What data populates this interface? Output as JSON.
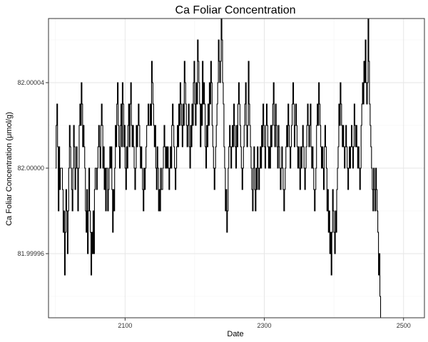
{
  "chart_data": {
    "type": "line",
    "title": "Ca Foliar Concentration",
    "xlabel": "Date",
    "ylabel": "Ca Foliar Concentration (μmol/g)",
    "x_ticks": [
      2100,
      2300,
      2500
    ],
    "y_ticks": [
      81.99996,
      82.0,
      82.00004
    ],
    "xlim": [
      1990,
      2530
    ],
    "ylim": [
      81.99993,
      82.00007
    ],
    "grid": true,
    "line_color": "#000000",
    "series": [
      {
        "x_start": 2000,
        "x_step": 1,
        "values": [
          82.0,
          82.00002,
          82.00003,
          82.00001,
          81.99998,
          82.00001,
          81.99999,
          82.0,
          82.0,
          82.0,
          81.99999,
          81.99997,
          81.99998,
          81.99995,
          81.99997,
          81.99999,
          81.99998,
          81.99996,
          81.99998,
          82.0,
          82.00002,
          82.00001,
          82.0,
          81.99999,
          81.99998,
          82.0,
          82.00002,
          82.00001,
          81.99999,
          82.0,
          82.00001,
          82.0,
          81.99998,
          82.0,
          82.00002,
          82.00003,
          82.00002,
          82.00004,
          82.00003,
          82.00001,
          82.00002,
          82.00001,
          82.0,
          81.99998,
          81.99997,
          81.99999,
          81.99996,
          81.99998,
          82.0,
          81.99998,
          81.99997,
          81.99995,
          81.99997,
          81.99996,
          81.99998,
          81.99996,
          81.99999,
          82.0,
          82.0,
          81.99999,
          82.0,
          82.00001,
          82.00002,
          82.00001,
          82.0,
          82.00002,
          82.00003,
          82.00002,
          82.0,
          82.00001,
          81.99999,
          82.0,
          81.99998,
          82.0,
          82.0,
          81.99998,
          81.99999,
          82.0,
          82.00001,
          82.0,
          82.00001,
          81.99999,
          81.99997,
          81.99999,
          81.99998,
          82.0,
          82.00002,
          82.00001,
          82.00003,
          82.00004,
          82.00002,
          82.00001,
          82.0,
          82.00002,
          82.00003,
          82.00001,
          82.00004,
          82.00003,
          82.00001,
          82.00002,
          82.0,
          81.99999,
          82.00001,
          82.0,
          82.00002,
          82.00003,
          82.00001,
          82.00003,
          82.00004,
          82.00002,
          82.00001,
          82.00002,
          82.00001,
          82.0,
          81.99999,
          82.0,
          82.00002,
          82.00001,
          82.00002,
          82.00003,
          82.00002,
          82.00001,
          82.0,
          82.00001,
          82.0,
          81.99999,
          81.99998,
          82.0,
          81.99999,
          82.0,
          82.00001,
          82.00002,
          82.00002,
          82.00003,
          82.00002,
          82.00002,
          82.00003,
          82.00002,
          82.00005,
          82.00004,
          82.00003,
          82.00002,
          82.00001,
          82.00002,
          82.0,
          81.99999,
          82.00001,
          82.0,
          81.99998,
          81.99999,
          81.99998,
          82.0,
          81.99999,
          81.99999,
          82.0,
          82.00001,
          82.00002,
          82.00001,
          82.0,
          82.00001,
          82.0,
          82.00001,
          82.0,
          81.99999,
          82.0,
          82.00001,
          82.0,
          82.00002,
          82.00003,
          82.00002,
          82.00001,
          82.0,
          81.99999,
          82.0,
          82.00001,
          82.00002,
          82.00001,
          82.00003,
          82.00002,
          82.00004,
          82.00003,
          82.00002,
          82.00001,
          82.00003,
          82.00002,
          82.00005,
          82.00004,
          82.00003,
          82.00002,
          82.00001,
          82.00002,
          82.00003,
          82.00001,
          82.0,
          82.00002,
          82.00001,
          82.00003,
          82.00002,
          82.00004,
          82.00005,
          82.00003,
          82.00002,
          82.00004,
          82.00003,
          82.00006,
          82.00005,
          82.00004,
          82.00003,
          82.00001,
          82.00003,
          82.00002,
          82.00005,
          82.00003,
          82.00004,
          82.00003,
          82.00001,
          82.0,
          82.00002,
          82.00001,
          82.00003,
          82.00002,
          82.00004,
          82.00003,
          82.00005,
          82.00004,
          82.00002,
          82.00001,
          82.0,
          81.99999,
          82.0,
          82.00001,
          82.00002,
          82.00003,
          82.00004,
          82.00006,
          82.00005,
          82.00004,
          82.00005,
          82.00007,
          82.00006,
          82.00004,
          82.00003,
          82.00001,
          82.0,
          81.99998,
          81.99999,
          81.99997,
          81.99998,
          82.0,
          82.00001,
          82.00002,
          82.00001,
          82.0,
          82.00001,
          82.00002,
          82.00001,
          82.00003,
          82.00002,
          82.00001,
          82.0,
          82.00002,
          82.00001,
          82.00003,
          82.00004,
          82.00003,
          82.00002,
          82.00001,
          82.0,
          81.99999,
          82.0,
          82.00001,
          82.00002,
          82.00003,
          82.00004,
          82.00002,
          82.00001,
          82.00002,
          82.00005,
          82.00003,
          82.00002,
          82.00001,
          82.0,
          81.99999,
          81.99998,
          82.0,
          82.00001,
          81.99999,
          81.99998,
          82.0,
          81.99999,
          82.00001,
          82.0,
          81.99999,
          82.0,
          82.00001,
          82.0,
          82.00002,
          82.00001,
          82.00003,
          82.00002,
          82.00001,
          82.0,
          82.00002,
          82.00003,
          82.00002,
          82.00001,
          82.0,
          82.00001,
          82.0,
          82.00002,
          82.00001,
          82.00002,
          82.00003,
          82.00004,
          82.00002,
          82.00001,
          82.00003,
          82.00002,
          82.00001,
          82.0,
          82.00002,
          82.00001,
          82.0,
          81.99999,
          82.0,
          82.00001,
          82.0,
          81.99999,
          81.99998,
          81.99999,
          82.0,
          82.00001,
          82.00002,
          82.00001,
          82.00003,
          82.00002,
          82.00001,
          82.0,
          82.00001,
          82.00002,
          82.00003,
          82.00004,
          82.00003,
          82.00001,
          82.00002,
          82.00003,
          82.00002,
          82.00001,
          82.0,
          82.00001,
          82.0,
          81.99999,
          82.00001,
          82.0,
          82.00001,
          82.00002,
          82.00001,
          82.0,
          81.99999,
          82.0,
          82.00001,
          82.00002,
          82.00003,
          82.00002,
          82.00001,
          82.00002,
          82.00003,
          82.00001,
          82.0,
          82.00001,
          82.0,
          81.99999,
          81.99998,
          81.99999,
          82.0,
          82.00002,
          82.00003,
          82.00002,
          82.00004,
          82.00003,
          82.00002,
          82.00001,
          82.0,
          82.00001,
          82.0,
          81.99999,
          82.00001,
          82.00002,
          82.00001,
          82.0,
          81.99998,
          81.99999,
          81.99997,
          81.99998,
          81.99996,
          81.99997,
          81.99995,
          81.99997,
          81.99999,
          81.99998,
          81.99997,
          81.99996,
          81.99998,
          81.99997,
          81.99999,
          82.0,
          82.00001,
          82.00003,
          82.00002,
          82.00004,
          82.00003,
          82.00002,
          82.00001,
          82.00002,
          82.00001,
          82.0,
          82.00001,
          82.00002,
          82.00001,
          82.0,
          81.99999,
          82.0,
          82.00001,
          82.0,
          82.00001,
          82.00002,
          82.00001,
          82.0,
          82.00001,
          82.00003,
          82.00002,
          82.00001,
          82.00002,
          82.00001,
          82.0,
          82.00001,
          82.0,
          81.99999,
          82.0,
          82.00002,
          82.00003,
          82.00004,
          82.00003,
          82.00005,
          82.00004,
          82.00006,
          82.00004,
          82.00003,
          82.00004,
          82.00007,
          82.00005,
          82.00003,
          82.00002,
          82.00001,
          82.0,
          81.99999,
          81.99998,
          82.0,
          81.99999,
          81.99998,
          82.0,
          81.99999,
          81.99998,
          81.99997,
          81.99995,
          81.99996,
          81.99994,
          81.99993
        ]
      }
    ]
  }
}
